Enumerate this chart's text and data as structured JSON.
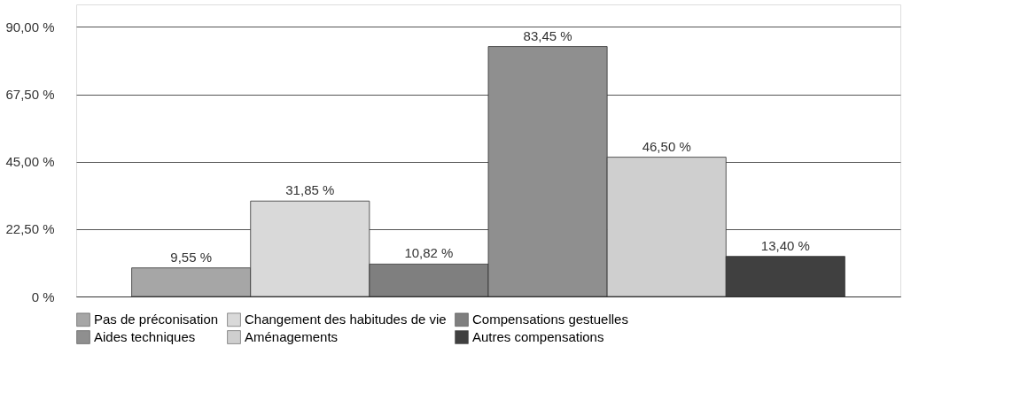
{
  "chart_data": {
    "type": "bar",
    "categories": [
      null
    ],
    "series": [
      {
        "name": "Pas de préconisation",
        "color": "#a6a6a6",
        "values": [
          9.55
        ],
        "value_labels": [
          "9,55 %"
        ]
      },
      {
        "name": "Changement des habitudes de vie",
        "color": "#d9d9d9",
        "values": [
          31.85
        ],
        "value_labels": [
          "31,85 %"
        ]
      },
      {
        "name": "Compensations gestuelles",
        "color": "#7f7f7f",
        "values": [
          10.82
        ],
        "value_labels": [
          "10,82 %"
        ]
      },
      {
        "name": "Aides techniques",
        "color": "#8f8f8f",
        "values": [
          83.45
        ],
        "value_labels": [
          "83,45 %"
        ]
      },
      {
        "name": "Aménagements",
        "color": "#cfcfcf",
        "values": [
          46.5
        ],
        "value_labels": [
          "46,50 %"
        ]
      },
      {
        "name": "Autres compensations",
        "color": "#404040",
        "values": [
          13.4
        ],
        "value_labels": [
          "13,40 %"
        ]
      }
    ],
    "ylim": [
      0,
      97.5
    ],
    "yticks": [
      {
        "value": 0,
        "label": "0 %"
      },
      {
        "value": 22.5,
        "label": "22,50 %"
      },
      {
        "value": 45,
        "label": "45,00 %"
      },
      {
        "value": 67.5,
        "label": "67,50 %"
      },
      {
        "value": 90,
        "label": "90,00 %"
      }
    ],
    "tick_labels": "y",
    "grid": "y",
    "legend": "bottom"
  }
}
